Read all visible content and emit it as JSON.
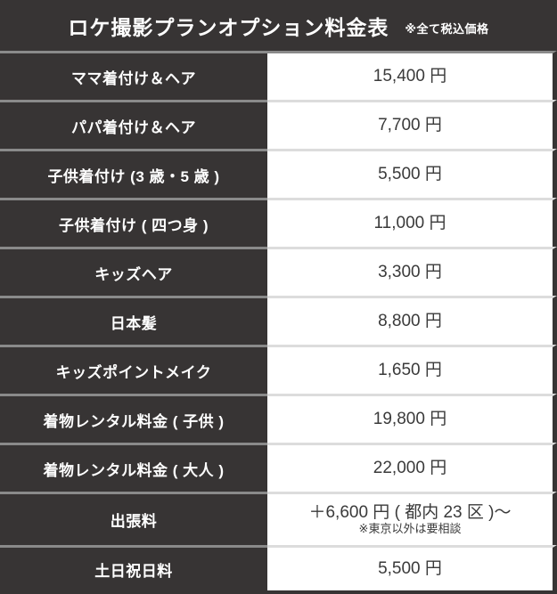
{
  "header": {
    "title": "ロケ撮影プランオプション料金表",
    "note": "※全て税込価格"
  },
  "table": {
    "rows": [
      {
        "label": "ママ着付け＆ヘア",
        "price": "15,400 円"
      },
      {
        "label": "パパ着付け＆ヘア",
        "price": "7,700 円"
      },
      {
        "label": "子供着付け (3 歳・5 歳 )",
        "price": "5,500 円"
      },
      {
        "label": "子供着付け ( 四つ身 )",
        "price": "11,000 円"
      },
      {
        "label": "キッズヘア",
        "price": "3,300 円"
      },
      {
        "label": "日本髪",
        "price": "8,800 円"
      },
      {
        "label": "キッズポイントメイク",
        "price": "1,650 円"
      },
      {
        "label": "着物レンタル料金 ( 子供 )",
        "price": "19,800 円"
      },
      {
        "label": "着物レンタル料金 ( 大人 )",
        "price": "22,000 円"
      },
      {
        "label": "出張料",
        "price": "＋6,600 円 ( 都内 23 区 )〜",
        "price_note": "※東京以外は要相談"
      },
      {
        "label": "土日祝日料",
        "price": "5,500 円"
      }
    ]
  },
  "colors": {
    "dark_background": "#373434",
    "separator_on_dark": "#8a8a8a",
    "separator_on_light": "#dcdcdc",
    "label_text": "#ffffff",
    "price_text": "#3a3a3a"
  }
}
